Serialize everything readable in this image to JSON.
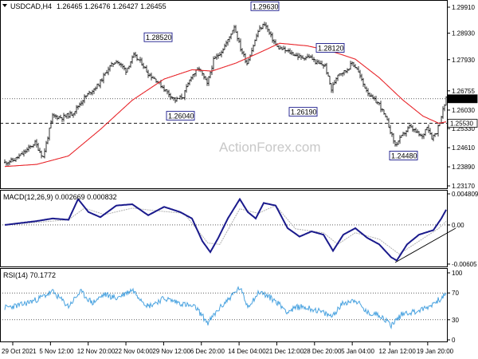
{
  "header": {
    "symbol_tf": "USDCAD,H4",
    "ohlc": "1.26465 1.26476 1.26427 1.26455"
  },
  "watermark": "ActionForex.com",
  "colors": {
    "price": "#000000",
    "ma": "#e8262b",
    "macd": "#1a1a8c",
    "signal": "#b0b0b0",
    "rsi": "#4aa3e0",
    "trendline": "#000000",
    "box_border": "#1a1a8c"
  },
  "chart_data": [
    {
      "type": "line",
      "name": "price",
      "ylim": [
        1.2317,
        1.3006
      ],
      "y_ticks": [
        "1.29910",
        "1.28930",
        "1.27930",
        "1.26755",
        "1.26030",
        "1.25330",
        "1.24610",
        "1.23890",
        "1.23170"
      ],
      "current_price": "1.26455",
      "reference_level": "1.25530",
      "annotations": [
        "1.29630",
        "1.28520",
        "1.28120",
        "1.26190",
        "1.26040",
        "1.24480"
      ],
      "x_labels": [
        "29 Oct 2021",
        "5 Nov 12:00",
        "12 Nov 20:00",
        "22 Nov 04:00",
        "29 Nov 12:00",
        "6 Dec 20:00",
        "14 Dec 04:00",
        "21 Dec 12:00",
        "28 Dec 20:00",
        "5 Jan 04:00",
        "12 Jan 12:00",
        "19 Jan 20:00"
      ],
      "anchors_close": [
        [
          0,
          1.2405
        ],
        [
          12,
          1.2415
        ],
        [
          25,
          1.2445
        ],
        [
          38,
          1.248
        ],
        [
          48,
          1.2425
        ],
        [
          60,
          1.258
        ],
        [
          72,
          1.2575
        ],
        [
          85,
          1.259
        ],
        [
          100,
          1.265
        ],
        [
          118,
          1.27
        ],
        [
          130,
          1.276
        ],
        [
          140,
          1.279
        ],
        [
          152,
          1.2752
        ],
        [
          162,
          1.2808
        ],
        [
          172,
          1.278
        ],
        [
          180,
          1.274
        ],
        [
          190,
          1.2716
        ],
        [
          204,
          1.267
        ],
        [
          214,
          1.264
        ],
        [
          224,
          1.2655
        ],
        [
          234,
          1.273
        ],
        [
          244,
          1.276
        ],
        [
          254,
          1.27
        ],
        [
          262,
          1.279
        ],
        [
          272,
          1.2825
        ],
        [
          280,
          1.2865
        ],
        [
          288,
          1.292
        ],
        [
          296,
          1.2835
        ],
        [
          304,
          1.278
        ],
        [
          310,
          1.283
        ],
        [
          318,
          1.29
        ],
        [
          326,
          1.293
        ],
        [
          334,
          1.288
        ],
        [
          342,
          1.284
        ],
        [
          350,
          1.283
        ],
        [
          362,
          1.2815
        ],
        [
          372,
          1.28
        ],
        [
          382,
          1.2805
        ],
        [
          392,
          1.278
        ],
        [
          402,
          1.277
        ],
        [
          410,
          1.268
        ],
        [
          418,
          1.274
        ],
        [
          428,
          1.275
        ],
        [
          436,
          1.278
        ],
        [
          442,
          1.276
        ],
        [
          450,
          1.27
        ],
        [
          460,
          1.265
        ],
        [
          470,
          1.2625
        ],
        [
          480,
          1.256
        ],
        [
          490,
          1.247
        ],
        [
          500,
          1.251
        ],
        [
          508,
          1.254
        ],
        [
          516,
          1.252
        ],
        [
          524,
          1.25
        ],
        [
          530,
          1.2545
        ],
        [
          536,
          1.25
        ],
        [
          542,
          1.252
        ],
        [
          548,
          1.258
        ],
        [
          554,
          1.2645
        ]
      ],
      "anchors_ma": [
        [
          0,
          1.239
        ],
        [
          40,
          1.2398
        ],
        [
          80,
          1.243
        ],
        [
          120,
          1.253
        ],
        [
          160,
          1.264
        ],
        [
          200,
          1.272
        ],
        [
          235,
          1.2755
        ],
        [
          260,
          1.275
        ],
        [
          290,
          1.278
        ],
        [
          320,
          1.282
        ],
        [
          345,
          1.2855
        ],
        [
          380,
          1.2845
        ],
        [
          410,
          1.2825
        ],
        [
          440,
          1.2795
        ],
        [
          470,
          1.2725
        ],
        [
          500,
          1.264
        ],
        [
          525,
          1.258
        ],
        [
          545,
          1.2553
        ],
        [
          556,
          1.256
        ]
      ]
    },
    {
      "type": "line",
      "name": "MACD(12,26,9)",
      "values_label": "0.002669 0.000832",
      "ylim": [
        -0.00605,
        0.004809
      ],
      "y_ticks": [
        "0.004809",
        "0.00",
        "-0.00605"
      ],
      "anchors_macd": [
        [
          0,
          0.0
        ],
        [
          20,
          0.0003
        ],
        [
          40,
          0.0006
        ],
        [
          60,
          0.001
        ],
        [
          80,
          0.0008
        ],
        [
          92,
          0.004
        ],
        [
          105,
          0.002
        ],
        [
          120,
          0.0012
        ],
        [
          140,
          0.003
        ],
        [
          160,
          0.0032
        ],
        [
          180,
          0.0015
        ],
        [
          200,
          0.0028
        ],
        [
          220,
          0.002
        ],
        [
          235,
          0.001
        ],
        [
          248,
          -0.0025
        ],
        [
          258,
          -0.0042
        ],
        [
          268,
          -0.002
        ],
        [
          280,
          0.001
        ],
        [
          295,
          0.004
        ],
        [
          305,
          0.002
        ],
        [
          315,
          0.001
        ],
        [
          325,
          0.0034
        ],
        [
          340,
          0.003
        ],
        [
          355,
          -0.0005
        ],
        [
          370,
          -0.0018
        ],
        [
          385,
          -0.001
        ],
        [
          400,
          -0.0015
        ],
        [
          412,
          -0.004
        ],
        [
          425,
          -0.0015
        ],
        [
          440,
          -0.0005
        ],
        [
          455,
          -0.002
        ],
        [
          470,
          -0.003
        ],
        [
          485,
          -0.005
        ],
        [
          492,
          -0.0055
        ],
        [
          505,
          -0.003
        ],
        [
          520,
          -0.0015
        ],
        [
          538,
          -0.0008
        ],
        [
          548,
          0.001
        ],
        [
          556,
          0.0028
        ]
      ],
      "anchors_signal": [
        [
          0,
          0.0
        ],
        [
          40,
          0.0004
        ],
        [
          80,
          0.0008
        ],
        [
          100,
          0.0026
        ],
        [
          125,
          0.0016
        ],
        [
          160,
          0.0026
        ],
        [
          190,
          0.0022
        ],
        [
          225,
          0.0018
        ],
        [
          255,
          -0.0028
        ],
        [
          270,
          -0.003
        ],
        [
          295,
          0.0025
        ],
        [
          318,
          0.0018
        ],
        [
          340,
          0.003
        ],
        [
          365,
          -0.0006
        ],
        [
          400,
          -0.0012
        ],
        [
          418,
          -0.003
        ],
        [
          440,
          -0.0012
        ],
        [
          470,
          -0.0022
        ],
        [
          495,
          -0.0045
        ],
        [
          520,
          -0.0025
        ],
        [
          545,
          -0.0005
        ],
        [
          556,
          0.0008
        ]
      ],
      "trendline": [
        [
          490,
          -0.0058
        ],
        [
          566,
          -0.0005
        ]
      ]
    },
    {
      "type": "line",
      "name": "RSI(14)",
      "values_label": "70.1772",
      "ylim": [
        0,
        100
      ],
      "y_ticks": [
        "100",
        "70",
        "30",
        "0"
      ],
      "levels": [
        70,
        30
      ],
      "anchors_rsi": [
        [
          0,
          48
        ],
        [
          20,
          52
        ],
        [
          40,
          60
        ],
        [
          60,
          72
        ],
        [
          80,
          50
        ],
        [
          95,
          72
        ],
        [
          110,
          55
        ],
        [
          125,
          68
        ],
        [
          140,
          62
        ],
        [
          160,
          75
        ],
        [
          180,
          50
        ],
        [
          200,
          62
        ],
        [
          220,
          55
        ],
        [
          240,
          48
        ],
        [
          255,
          25
        ],
        [
          268,
          45
        ],
        [
          280,
          60
        ],
        [
          295,
          78
        ],
        [
          305,
          50
        ],
        [
          320,
          72
        ],
        [
          340,
          58
        ],
        [
          355,
          42
        ],
        [
          370,
          50
        ],
        [
          390,
          45
        ],
        [
          410,
          35
        ],
        [
          425,
          55
        ],
        [
          440,
          60
        ],
        [
          455,
          40
        ],
        [
          470,
          38
        ],
        [
          485,
          22
        ],
        [
          500,
          40
        ],
        [
          515,
          42
        ],
        [
          530,
          48
        ],
        [
          545,
          60
        ],
        [
          556,
          70
        ]
      ]
    }
  ]
}
